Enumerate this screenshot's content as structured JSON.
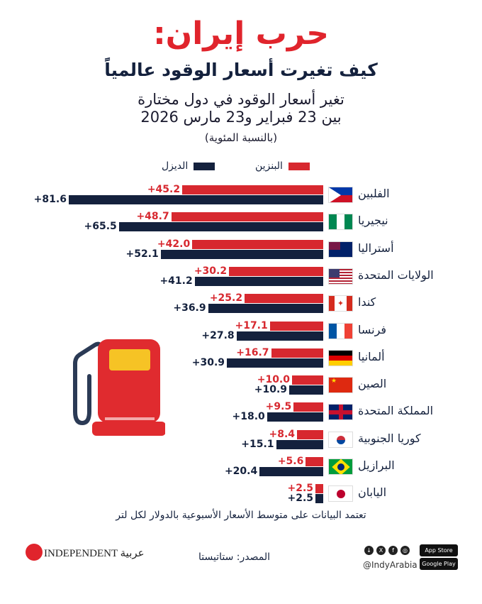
{
  "header": {
    "title": "حرب إيران:",
    "subtitle": "كيف تغيرت أسعار الوقود عالمياً",
    "description_line1": "تغير أسعار الوقود في دول مختارة",
    "description_line2": "بين 23 فبراير و23 مارس 2026",
    "unit": "(بالنسبة المئوية)"
  },
  "colors": {
    "petrol": "#d7282f",
    "diesel": "#14213d",
    "title": "#e0242c"
  },
  "chart_data": {
    "type": "bar",
    "orientation": "horizontal",
    "title": "تغير أسعار الوقود في دول مختارة بين 23 فبراير و23 مارس 2026",
    "ylabel": "(بالنسبة المئوية)",
    "legend": {
      "position": "top",
      "entries": [
        "البنزين",
        "الديزل"
      ]
    },
    "categories": [
      "الفلبين",
      "نيجيريا",
      "أستراليا",
      "الولايات المتحدة",
      "كندا",
      "فرنسا",
      "ألمانيا",
      "الصين",
      "المملكة المتحدة",
      "كوريا الجنوبية",
      "البرازيل",
      "اليابان"
    ],
    "series": [
      {
        "name": "البنزين",
        "values": [
          45.2,
          48.7,
          42.0,
          30.2,
          25.2,
          17.1,
          16.7,
          10.0,
          9.5,
          8.4,
          5.6,
          2.5
        ],
        "labels": [
          "+45.2",
          "+48.7",
          "+42.0",
          "+30.2",
          "+25.2",
          "+17.1",
          "+16.7",
          "+10.0",
          "+9.5",
          "+8.4",
          "+5.6",
          "+2.5"
        ]
      },
      {
        "name": "الديزل",
        "values": [
          81.6,
          65.5,
          52.1,
          41.2,
          36.9,
          27.8,
          30.9,
          10.9,
          18.0,
          15.1,
          20.4,
          2.5
        ],
        "labels": [
          "+81.6",
          "+65.5",
          "+52.1",
          "+41.2",
          "+36.9",
          "+27.8",
          "+30.9",
          "+10.9",
          "+18.0",
          "+15.1",
          "+20.4",
          "+2.5"
        ]
      }
    ],
    "flags": [
      "ph",
      "ng",
      "au",
      "us",
      "ca",
      "fr",
      "de",
      "cn",
      "gb",
      "kr",
      "br",
      "jp"
    ],
    "xlim": [
      0,
      82
    ]
  },
  "footer": {
    "note": "تعتمد البيانات على متوسط الأسعار الأسبوعية بالدولار لكل لتر",
    "source": "المصدر: ستاتيستا",
    "handle": "@IndyArabia",
    "logo": "INDEPENDENT عربية",
    "app_store": "App Store",
    "google_play": "Google Play"
  }
}
